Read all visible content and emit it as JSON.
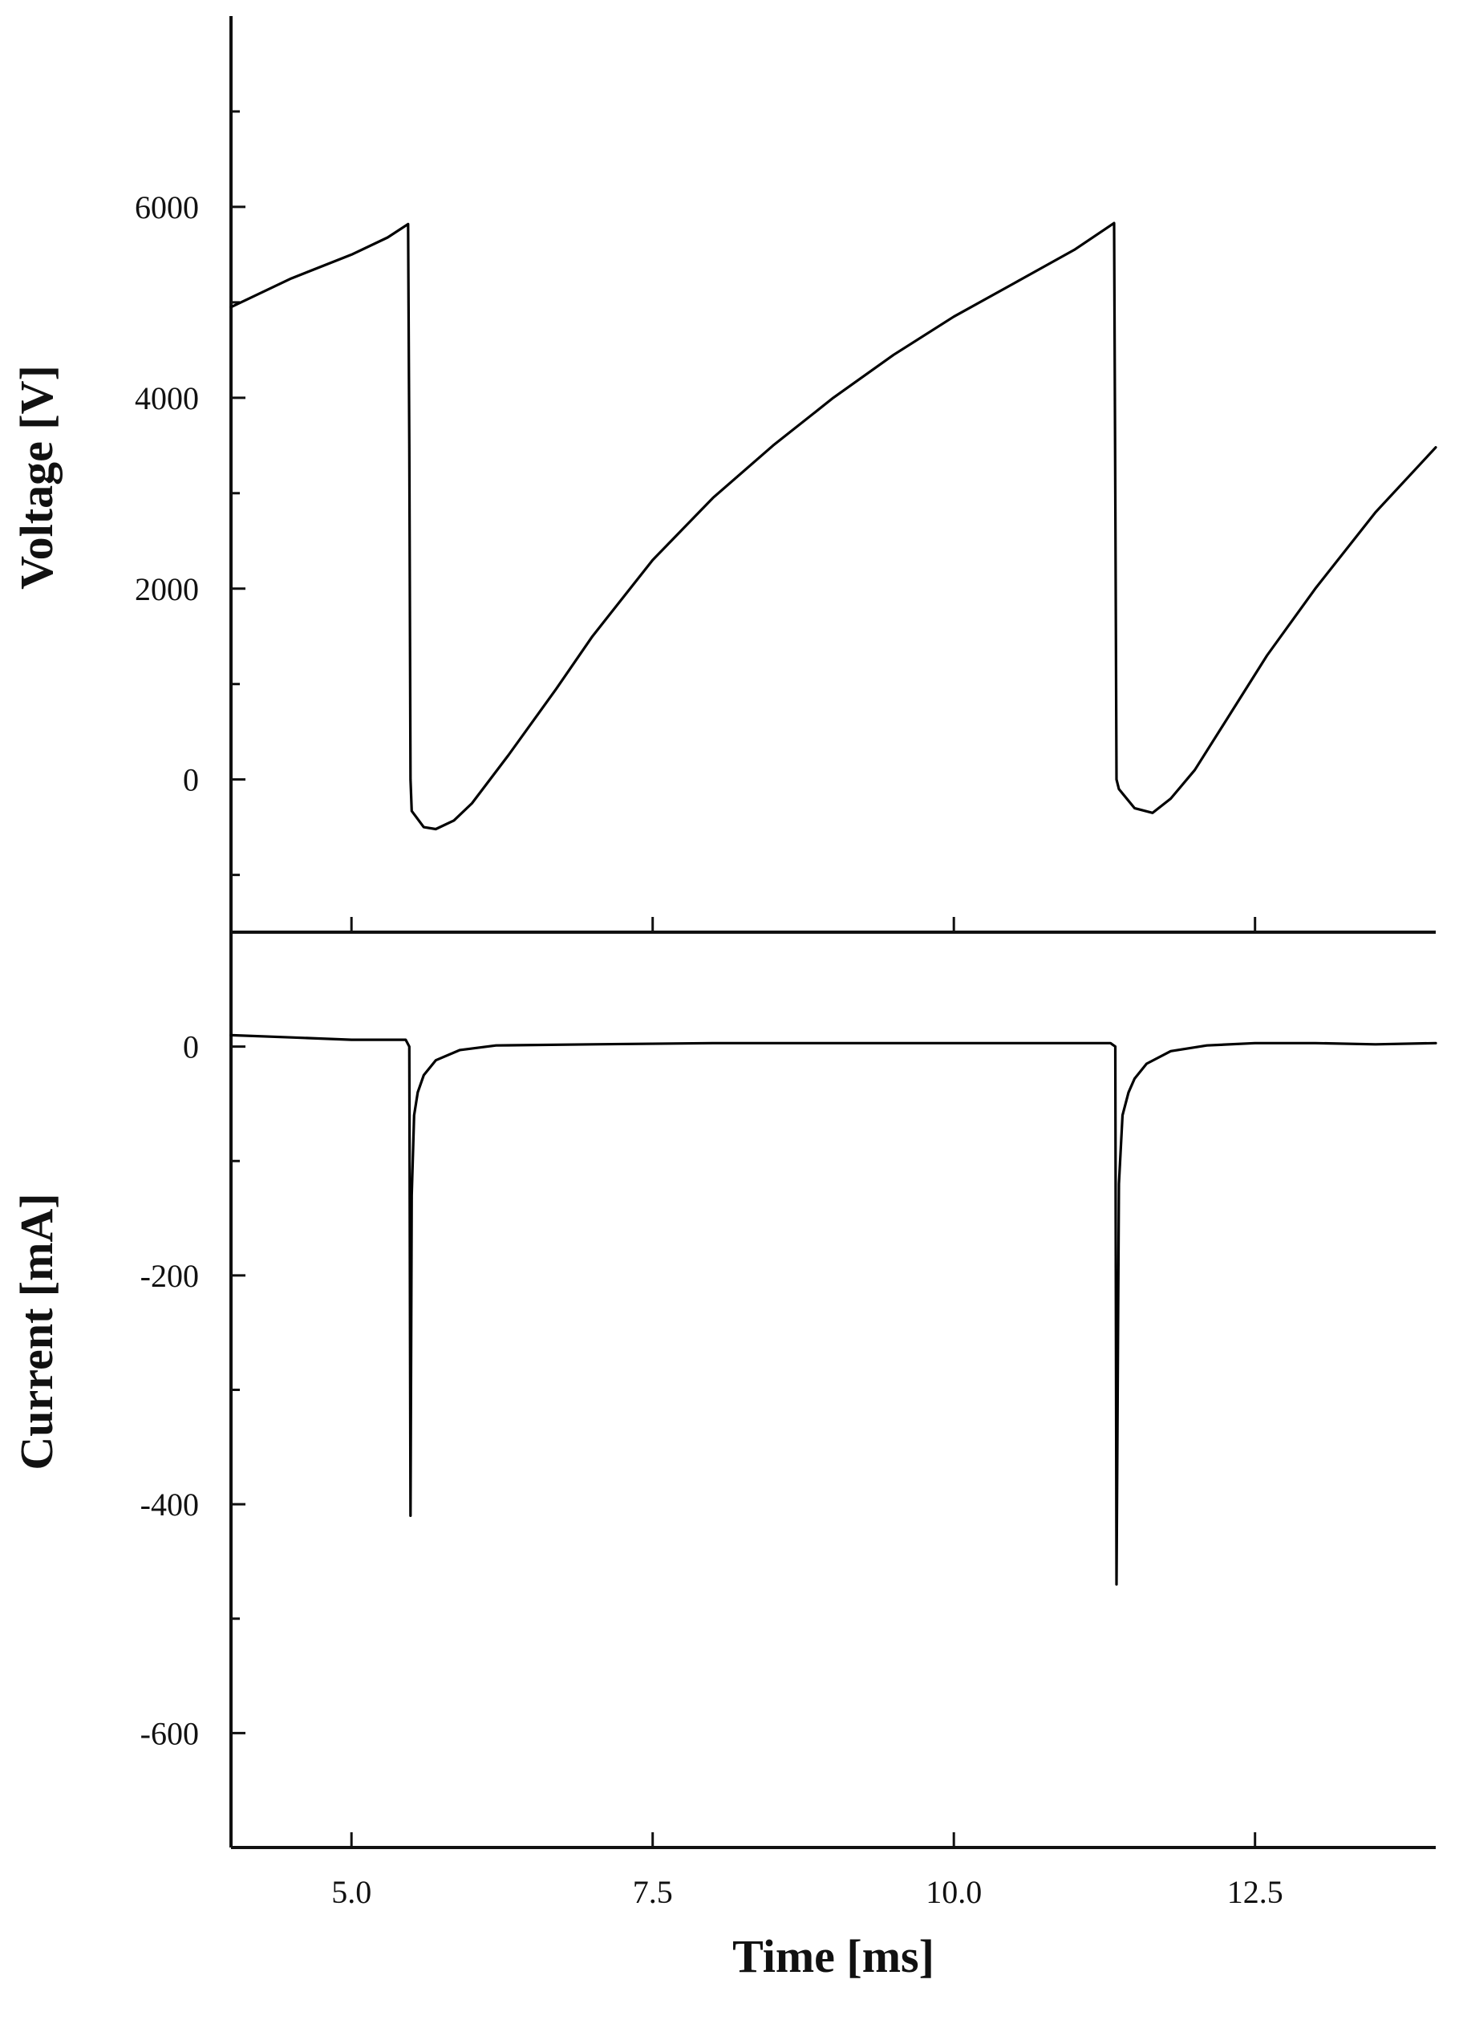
{
  "chart_data": {
    "type": "line",
    "x": {
      "label": "Time [ms]",
      "range": [
        4.0,
        14.0
      ],
      "ticks": [
        5.0,
        7.5,
        10.0,
        12.5
      ],
      "tick_labels": [
        "5.0",
        "7.5",
        "10.0",
        "12.5"
      ]
    },
    "panels": [
      {
        "name": "voltage",
        "ylabel": "Voltage [V]",
        "ylim": [
          -1600,
          8000
        ],
        "ticks": [
          0,
          2000,
          4000,
          6000
        ],
        "tick_labels": [
          "0",
          "2000",
          "4000",
          "6000"
        ],
        "minor_ticks": [
          -1000,
          1000,
          3000,
          5000,
          7000
        ],
        "series": [
          {
            "values": [
              [
                4.0,
                4950
              ],
              [
                4.5,
                5250
              ],
              [
                5.0,
                5500
              ],
              [
                5.3,
                5680
              ],
              [
                5.47,
                5820
              ],
              [
                5.48,
                3500
              ],
              [
                5.49,
                0
              ],
              [
                5.5,
                -330
              ],
              [
                5.6,
                -500
              ],
              [
                5.7,
                -520
              ],
              [
                5.85,
                -430
              ],
              [
                6.0,
                -250
              ],
              [
                6.3,
                250
              ],
              [
                6.7,
                950
              ],
              [
                7.0,
                1500
              ],
              [
                7.5,
                2300
              ],
              [
                8.0,
                2950
              ],
              [
                8.5,
                3500
              ],
              [
                9.0,
                4000
              ],
              [
                9.5,
                4450
              ],
              [
                10.0,
                4850
              ],
              [
                10.5,
                5200
              ],
              [
                11.0,
                5550
              ],
              [
                11.33,
                5830
              ],
              [
                11.34,
                3000
              ],
              [
                11.35,
                0
              ],
              [
                11.37,
                -100
              ],
              [
                11.5,
                -300
              ],
              [
                11.65,
                -350
              ],
              [
                11.8,
                -200
              ],
              [
                12.0,
                100
              ],
              [
                12.3,
                700
              ],
              [
                12.6,
                1300
              ],
              [
                13.0,
                2000
              ],
              [
                13.5,
                2800
              ],
              [
                14.0,
                3480
              ]
            ]
          }
        ]
      },
      {
        "name": "current",
        "ylabel": "Current [mA]",
        "ylim": [
          -700,
          100
        ],
        "ticks": [
          -600,
          -400,
          -200,
          0
        ],
        "tick_labels": [
          "-600",
          "-400",
          "-200",
          "0"
        ],
        "minor_ticks": [
          -700,
          -500,
          -300,
          -100,
          100
        ],
        "series": [
          {
            "values": [
              [
                4.0,
                10
              ],
              [
                4.5,
                8
              ],
              [
                5.0,
                6
              ],
              [
                5.45,
                6
              ],
              [
                5.48,
                0
              ],
              [
                5.49,
                -410
              ],
              [
                5.5,
                -130
              ],
              [
                5.52,
                -60
              ],
              [
                5.55,
                -40
              ],
              [
                5.6,
                -25
              ],
              [
                5.7,
                -12
              ],
              [
                5.9,
                -3
              ],
              [
                6.2,
                1
              ],
              [
                7.0,
                2
              ],
              [
                8.0,
                3
              ],
              [
                9.0,
                3
              ],
              [
                10.0,
                3
              ],
              [
                11.0,
                3
              ],
              [
                11.3,
                3
              ],
              [
                11.34,
                0
              ],
              [
                11.35,
                -470
              ],
              [
                11.37,
                -120
              ],
              [
                11.4,
                -60
              ],
              [
                11.45,
                -40
              ],
              [
                11.5,
                -28
              ],
              [
                11.6,
                -15
              ],
              [
                11.8,
                -4
              ],
              [
                12.1,
                1
              ],
              [
                12.5,
                3
              ],
              [
                13.0,
                3
              ],
              [
                13.5,
                2
              ],
              [
                14.0,
                3
              ]
            ]
          }
        ]
      }
    ],
    "grid": false,
    "legend": "none"
  }
}
